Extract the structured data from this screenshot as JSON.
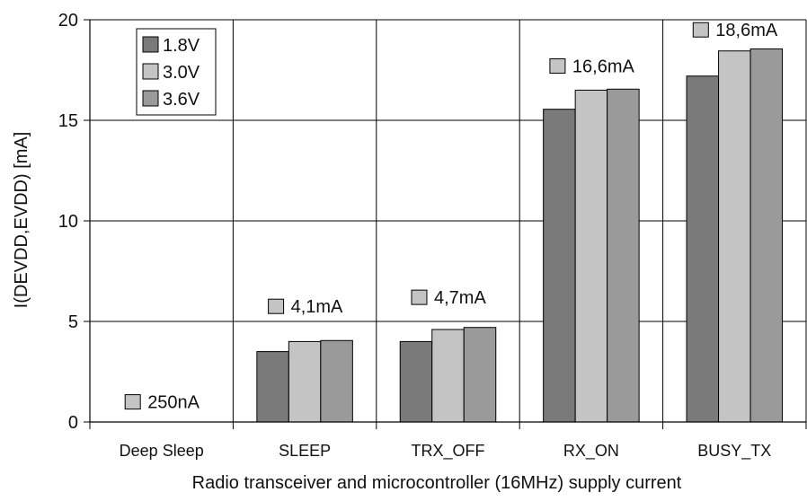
{
  "chart_data": {
    "type": "bar",
    "title": "",
    "xlabel": "Radio transceiver and microcontroller (16MHz) supply current",
    "ylabel": "I(DEVDD,EVDD) [mA]",
    "ylim": [
      0,
      20
    ],
    "yticks": [
      0,
      5,
      10,
      15,
      20
    ],
    "grid": true,
    "legend_position": "top-left",
    "categories": [
      "Deep Sleep",
      "SLEEP",
      "TRX_OFF",
      "RX_ON",
      "BUSY_TX"
    ],
    "series": [
      {
        "name": "1.8V",
        "color": "#7a7a7a",
        "values": [
          0.0,
          3.5,
          4.0,
          15.55,
          17.2
        ]
      },
      {
        "name": "3.0V",
        "color": "#c4c4c4",
        "values": [
          0.0,
          4.0,
          4.6,
          16.5,
          18.45
        ]
      },
      {
        "name": "3.6V",
        "color": "#9a9a9a",
        "values": [
          0.0,
          4.05,
          4.7,
          16.55,
          18.55
        ]
      }
    ],
    "annotations": [
      {
        "category": "Deep Sleep",
        "text": "250nA",
        "at_value": 1.0
      },
      {
        "category": "SLEEP",
        "text": "4,1mA",
        "at_value": 5.75
      },
      {
        "category": "TRX_OFF",
        "text": "4,7mA",
        "at_value": 6.2
      },
      {
        "category": "RX_ON",
        "text": "16,6mA",
        "at_value": 17.7
      },
      {
        "category": "BUSY_TX",
        "text": "18,6mA",
        "at_value": 19.5
      }
    ],
    "annotation_marker_color": "#c4c4c4"
  }
}
